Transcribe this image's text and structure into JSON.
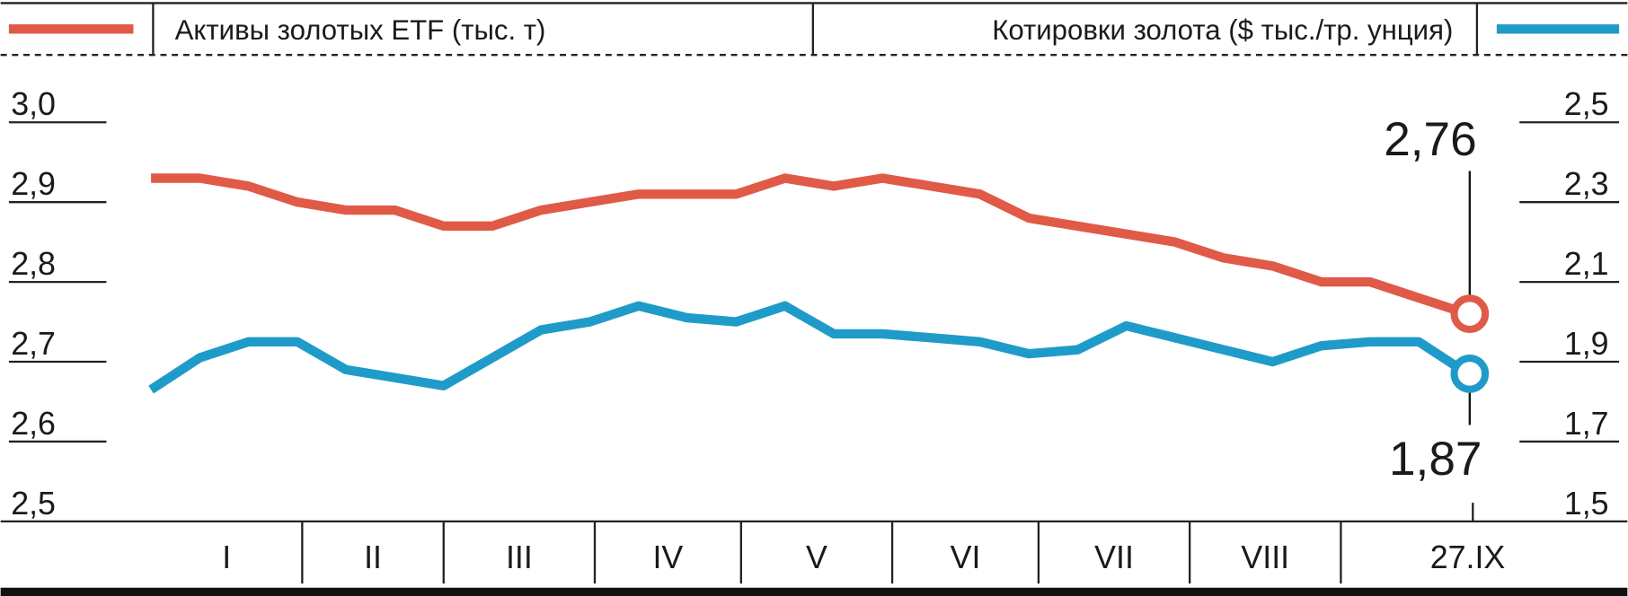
{
  "chart_data": {
    "type": "line",
    "x": [
      0,
      10,
      20,
      30,
      40,
      50,
      60,
      70,
      80,
      90,
      100,
      110,
      120,
      130,
      140,
      150,
      160,
      170,
      180,
      190,
      200,
      210,
      220,
      230,
      240,
      250,
      260,
      270
    ],
    "xlim": [
      0,
      270
    ],
    "month_labels": [
      "I",
      "II",
      "III",
      "IV",
      "V",
      "VI",
      "VII",
      "VIII",
      "27.IX"
    ],
    "series": [
      {
        "name": "Активы золотых ETF (тыс. т)",
        "color": "#e05a47",
        "axis": "y",
        "values": [
          2.93,
          2.93,
          2.92,
          2.9,
          2.89,
          2.89,
          2.87,
          2.87,
          2.89,
          2.9,
          2.91,
          2.91,
          2.91,
          2.93,
          2.92,
          2.93,
          2.92,
          2.91,
          2.88,
          2.87,
          2.86,
          2.85,
          2.83,
          2.82,
          2.8,
          2.8,
          2.78,
          2.76
        ],
        "end_label": "2,76"
      },
      {
        "name": "Котировки золота ($ тыс./тр. унция)",
        "color": "#1f9bc9",
        "axis": "y2",
        "values": [
          1.83,
          1.91,
          1.95,
          1.95,
          1.88,
          1.86,
          1.84,
          1.91,
          1.98,
          2.0,
          2.04,
          2.01,
          2.0,
          2.04,
          1.97,
          1.97,
          1.96,
          1.95,
          1.92,
          1.93,
          1.99,
          1.96,
          1.93,
          1.9,
          1.94,
          1.95,
          1.95,
          1.87
        ],
        "end_label": "1,87"
      }
    ],
    "ylim": [
      2.5,
      3.0
    ],
    "yticks": [
      {
        "value": 2.5,
        "label": "2,5"
      },
      {
        "value": 2.6,
        "label": "2,6"
      },
      {
        "value": 2.7,
        "label": "2,7"
      },
      {
        "value": 2.8,
        "label": "2,8"
      },
      {
        "value": 2.9,
        "label": "2,9"
      },
      {
        "value": 3.0,
        "label": "3,0"
      }
    ],
    "y2lim": [
      1.5,
      2.5
    ],
    "y2ticks": [
      {
        "value": 1.5,
        "label": "1,5"
      },
      {
        "value": 1.7,
        "label": "1,7"
      },
      {
        "value": 1.9,
        "label": "1,9"
      },
      {
        "value": 2.1,
        "label": "2,1"
      },
      {
        "value": 2.3,
        "label": "2,3"
      },
      {
        "value": 2.5,
        "label": "2,5"
      }
    ]
  }
}
